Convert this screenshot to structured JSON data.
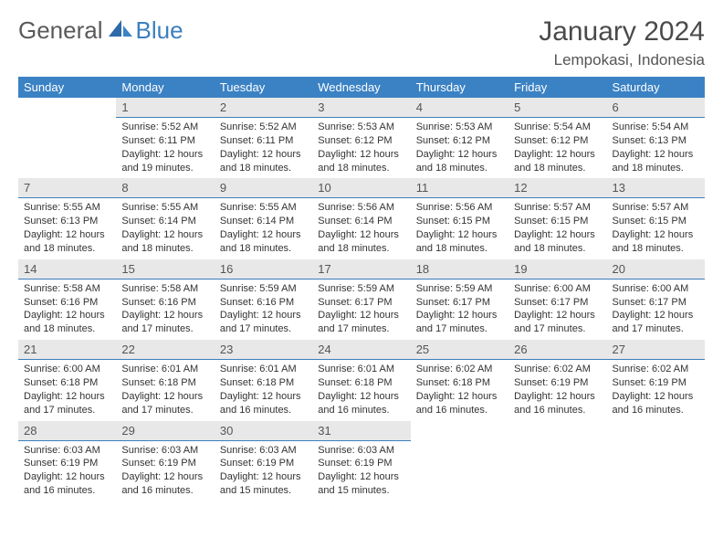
{
  "logo": {
    "part1": "General",
    "part2": "Blue"
  },
  "title": "January 2024",
  "location": "Lempokasi, Indonesia",
  "colors": {
    "header_bg": "#3b82c4",
    "header_text": "#ffffff",
    "daynum_bg": "#e8e8e8",
    "daynum_border": "#3b7fbf",
    "body_text": "#333333",
    "logo_gray": "#5a5a5a",
    "logo_blue": "#3b7fbf",
    "page_bg": "#ffffff"
  },
  "fonts": {
    "title_size_pt": 22,
    "location_size_pt": 13,
    "weekday_size_pt": 10,
    "daynum_size_pt": 10,
    "body_size_pt": 8
  },
  "weekdays": [
    "Sunday",
    "Monday",
    "Tuesday",
    "Wednesday",
    "Thursday",
    "Friday",
    "Saturday"
  ],
  "weeks": [
    [
      null,
      {
        "n": "1",
        "sr": "5:52 AM",
        "ss": "6:11 PM",
        "dl": "12 hours and 19 minutes."
      },
      {
        "n": "2",
        "sr": "5:52 AM",
        "ss": "6:11 PM",
        "dl": "12 hours and 18 minutes."
      },
      {
        "n": "3",
        "sr": "5:53 AM",
        "ss": "6:12 PM",
        "dl": "12 hours and 18 minutes."
      },
      {
        "n": "4",
        "sr": "5:53 AM",
        "ss": "6:12 PM",
        "dl": "12 hours and 18 minutes."
      },
      {
        "n": "5",
        "sr": "5:54 AM",
        "ss": "6:12 PM",
        "dl": "12 hours and 18 minutes."
      },
      {
        "n": "6",
        "sr": "5:54 AM",
        "ss": "6:13 PM",
        "dl": "12 hours and 18 minutes."
      }
    ],
    [
      {
        "n": "7",
        "sr": "5:55 AM",
        "ss": "6:13 PM",
        "dl": "12 hours and 18 minutes."
      },
      {
        "n": "8",
        "sr": "5:55 AM",
        "ss": "6:14 PM",
        "dl": "12 hours and 18 minutes."
      },
      {
        "n": "9",
        "sr": "5:55 AM",
        "ss": "6:14 PM",
        "dl": "12 hours and 18 minutes."
      },
      {
        "n": "10",
        "sr": "5:56 AM",
        "ss": "6:14 PM",
        "dl": "12 hours and 18 minutes."
      },
      {
        "n": "11",
        "sr": "5:56 AM",
        "ss": "6:15 PM",
        "dl": "12 hours and 18 minutes."
      },
      {
        "n": "12",
        "sr": "5:57 AM",
        "ss": "6:15 PM",
        "dl": "12 hours and 18 minutes."
      },
      {
        "n": "13",
        "sr": "5:57 AM",
        "ss": "6:15 PM",
        "dl": "12 hours and 18 minutes."
      }
    ],
    [
      {
        "n": "14",
        "sr": "5:58 AM",
        "ss": "6:16 PM",
        "dl": "12 hours and 18 minutes."
      },
      {
        "n": "15",
        "sr": "5:58 AM",
        "ss": "6:16 PM",
        "dl": "12 hours and 17 minutes."
      },
      {
        "n": "16",
        "sr": "5:59 AM",
        "ss": "6:16 PM",
        "dl": "12 hours and 17 minutes."
      },
      {
        "n": "17",
        "sr": "5:59 AM",
        "ss": "6:17 PM",
        "dl": "12 hours and 17 minutes."
      },
      {
        "n": "18",
        "sr": "5:59 AM",
        "ss": "6:17 PM",
        "dl": "12 hours and 17 minutes."
      },
      {
        "n": "19",
        "sr": "6:00 AM",
        "ss": "6:17 PM",
        "dl": "12 hours and 17 minutes."
      },
      {
        "n": "20",
        "sr": "6:00 AM",
        "ss": "6:17 PM",
        "dl": "12 hours and 17 minutes."
      }
    ],
    [
      {
        "n": "21",
        "sr": "6:00 AM",
        "ss": "6:18 PM",
        "dl": "12 hours and 17 minutes."
      },
      {
        "n": "22",
        "sr": "6:01 AM",
        "ss": "6:18 PM",
        "dl": "12 hours and 17 minutes."
      },
      {
        "n": "23",
        "sr": "6:01 AM",
        "ss": "6:18 PM",
        "dl": "12 hours and 16 minutes."
      },
      {
        "n": "24",
        "sr": "6:01 AM",
        "ss": "6:18 PM",
        "dl": "12 hours and 16 minutes."
      },
      {
        "n": "25",
        "sr": "6:02 AM",
        "ss": "6:18 PM",
        "dl": "12 hours and 16 minutes."
      },
      {
        "n": "26",
        "sr": "6:02 AM",
        "ss": "6:19 PM",
        "dl": "12 hours and 16 minutes."
      },
      {
        "n": "27",
        "sr": "6:02 AM",
        "ss": "6:19 PM",
        "dl": "12 hours and 16 minutes."
      }
    ],
    [
      {
        "n": "28",
        "sr": "6:03 AM",
        "ss": "6:19 PM",
        "dl": "12 hours and 16 minutes."
      },
      {
        "n": "29",
        "sr": "6:03 AM",
        "ss": "6:19 PM",
        "dl": "12 hours and 16 minutes."
      },
      {
        "n": "30",
        "sr": "6:03 AM",
        "ss": "6:19 PM",
        "dl": "12 hours and 15 minutes."
      },
      {
        "n": "31",
        "sr": "6:03 AM",
        "ss": "6:19 PM",
        "dl": "12 hours and 15 minutes."
      },
      null,
      null,
      null
    ]
  ],
  "labels": {
    "sunrise": "Sunrise:",
    "sunset": "Sunset:",
    "daylight": "Daylight:"
  }
}
